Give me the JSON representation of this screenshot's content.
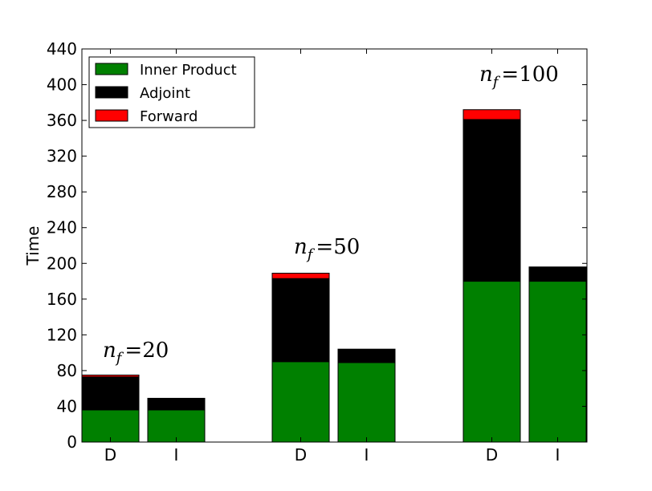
{
  "chart_data": {
    "type": "bar",
    "stacked": true,
    "xlabel": "",
    "ylabel": "Time",
    "ylim": [
      0,
      440
    ],
    "yticks": [
      0,
      40,
      80,
      120,
      160,
      200,
      240,
      280,
      320,
      360,
      400,
      440
    ],
    "grid": false,
    "legend_position": "top-left",
    "groups": [
      {
        "annotation_symbol": "n",
        "annotation_subscript": "f",
        "annotation_value": "=20",
        "bars": [
          {
            "label": "D",
            "inner_product": 36,
            "adjoint": 37,
            "forward": 2
          },
          {
            "label": "I",
            "inner_product": 36,
            "adjoint": 13,
            "forward": 0
          }
        ]
      },
      {
        "annotation_symbol": "n",
        "annotation_subscript": "f",
        "annotation_value": "=50",
        "bars": [
          {
            "label": "D",
            "inner_product": 90,
            "adjoint": 93,
            "forward": 6
          },
          {
            "label": "I",
            "inner_product": 89,
            "adjoint": 15,
            "forward": 0
          }
        ]
      },
      {
        "annotation_symbol": "n",
        "annotation_subscript": "f",
        "annotation_value": "=100",
        "bars": [
          {
            "label": "D",
            "inner_product": 180,
            "adjoint": 181,
            "forward": 11
          },
          {
            "label": "I",
            "inner_product": 180,
            "adjoint": 16,
            "forward": 0
          }
        ]
      }
    ],
    "series": [
      {
        "key": "inner_product",
        "name": "Inner Product",
        "color": "#008000"
      },
      {
        "key": "adjoint",
        "name": "Adjoint",
        "color": "#000000"
      },
      {
        "key": "forward",
        "name": "Forward",
        "color": "#ff0000"
      }
    ]
  }
}
